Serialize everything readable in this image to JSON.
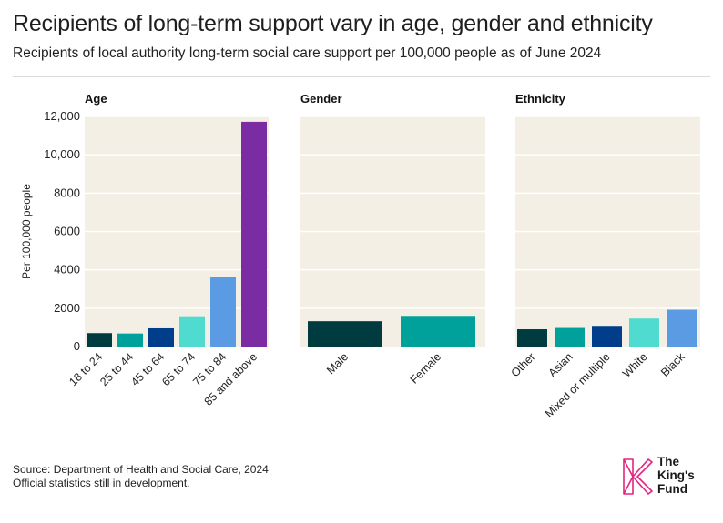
{
  "title": "Recipients of long-term support vary in age, gender and ethnicity",
  "subtitle": "Recipients of local authority long-term social care support per 100,000 people as of June 2024",
  "footer": {
    "source": "Source: Department of Health and Social Care, 2024",
    "note": "Official statistics still in development."
  },
  "logo": {
    "line1": "The",
    "line2": "King's",
    "line3": "Fund",
    "color": "#e0267d"
  },
  "colors": {
    "panel_bg": "#f4efe4",
    "gridline": "#ffffff"
  },
  "chart_data": {
    "type": "bar",
    "ylabel": "Per 100,000 people",
    "ylim": [
      0,
      12000
    ],
    "yticks": [
      "0",
      "2000",
      "4000",
      "6000",
      "8000",
      "10,000",
      "12,000"
    ],
    "ytick_values": [
      0,
      2000,
      4000,
      6000,
      8000,
      10000,
      12000
    ],
    "panels": [
      {
        "title": "Age",
        "categories": [
          "18 to 24",
          "25 to 44",
          "45 to 64",
          "65 to 74",
          "75 to 84",
          "85 and above"
        ],
        "values": [
          700,
          680,
          950,
          1580,
          3630,
          11720
        ],
        "colors": [
          "#003b3f",
          "#00a19a",
          "#003d8a",
          "#4fdbd0",
          "#5a9be3",
          "#7b2ca3"
        ]
      },
      {
        "title": "Gender",
        "categories": [
          "Male",
          "Female"
        ],
        "values": [
          1320,
          1600
        ],
        "colors": [
          "#003b3f",
          "#00a19a"
        ]
      },
      {
        "title": "Ethnicity",
        "categories": [
          "Other",
          "Asian",
          "Mixed or multiple",
          "White",
          "Black"
        ],
        "values": [
          900,
          970,
          1080,
          1460,
          1920
        ],
        "colors": [
          "#003b3f",
          "#00a19a",
          "#003d8a",
          "#4fdbd0",
          "#5a9be3"
        ]
      }
    ]
  }
}
